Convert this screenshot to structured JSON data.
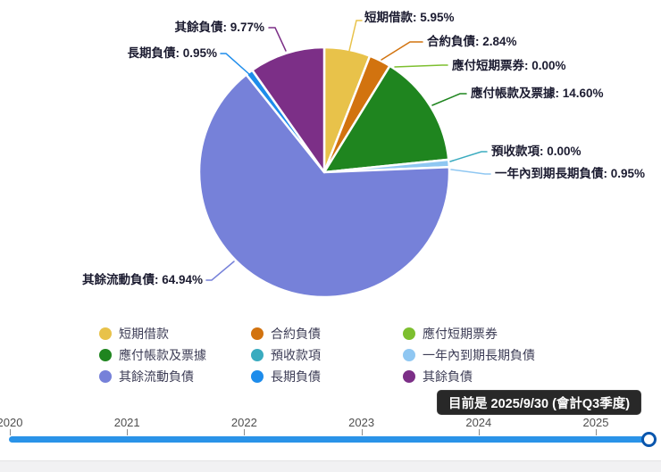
{
  "chart_data": {
    "type": "pie",
    "unit": "%",
    "label_format": "{name}: {value}%",
    "legend_position": "bottom",
    "series": [
      {
        "name": "短期借款",
        "value": 5.95,
        "color": "#e8c24a"
      },
      {
        "name": "合約負債",
        "value": 2.84,
        "color": "#d2730f"
      },
      {
        "name": "應付短期票券",
        "value": 0.0,
        "color": "#7dbf2f"
      },
      {
        "name": "應付帳款及票據",
        "value": 14.6,
        "color": "#1f851f"
      },
      {
        "name": "預收款項",
        "value": 0.0,
        "color": "#3aabbf"
      },
      {
        "name": "一年內到期長期負債",
        "value": 0.95,
        "color": "#8fc7f2"
      },
      {
        "name": "其餘流動負債",
        "value": 64.94,
        "color": "#7681d9"
      },
      {
        "name": "長期負債",
        "value": 0.95,
        "color": "#1d8ceb"
      },
      {
        "name": "其餘負債",
        "value": 9.77,
        "color": "#7c2f87"
      }
    ]
  },
  "tooltip": {
    "text": "目前是 2025/9/30 (會計Q3季度)",
    "background": "#282828",
    "text_color": "#ffffff"
  },
  "timeline": {
    "years": [
      "2020",
      "2021",
      "2022",
      "2023",
      "2024",
      "2025"
    ],
    "track_color": "#2a93e8",
    "handle_border_color": "#0a56ad"
  }
}
